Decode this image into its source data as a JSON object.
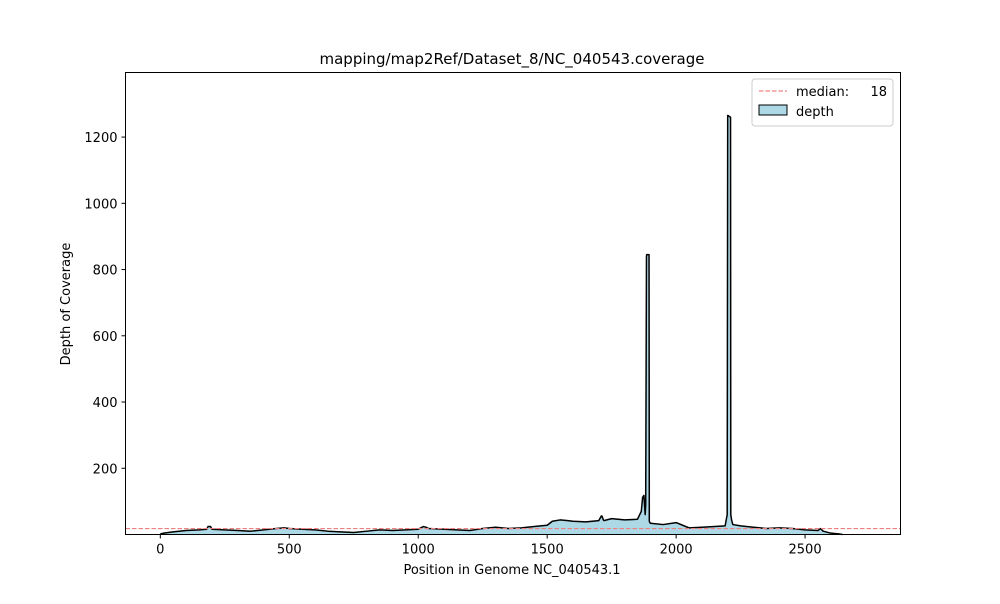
{
  "chart_data": {
    "type": "area",
    "title": "mapping/map2Ref/Dataset_8/NC_040543.coverage",
    "xlabel": "Position in Genome NC_040543.1",
    "ylabel": "Depth of Coverage",
    "xlim": [
      -135,
      2870
    ],
    "ylim": [
      0,
      1395
    ],
    "xticks": [
      0,
      500,
      1000,
      1500,
      2000,
      2500
    ],
    "yticks": [
      200,
      400,
      600,
      800,
      1000,
      1200
    ],
    "grid": false,
    "legend_position": "top-right",
    "median": {
      "label": "median:",
      "value": "18",
      "y": 18,
      "color": "#f08080"
    },
    "series": [
      {
        "name": "depth",
        "fill_color": "#add8e6",
        "edge_color": "#000000",
        "x": [
          0,
          20,
          50,
          100,
          150,
          180,
          185,
          195,
          200,
          250,
          300,
          350,
          400,
          450,
          480,
          500,
          550,
          600,
          650,
          700,
          750,
          800,
          850,
          900,
          950,
          1000,
          1020,
          1030,
          1040,
          1100,
          1150,
          1200,
          1250,
          1300,
          1350,
          1400,
          1450,
          1500,
          1520,
          1550,
          1580,
          1600,
          1650,
          1700,
          1710,
          1712,
          1718,
          1720,
          1750,
          1800,
          1850,
          1865,
          1870,
          1875,
          1880,
          1882,
          1885,
          1886,
          1895,
          1896,
          1900,
          1950,
          2000,
          2050,
          2100,
          2150,
          2190,
          2198,
          2200,
          2201,
          2211,
          2212,
          2215,
          2220,
          2250,
          2300,
          2350,
          2400,
          2450,
          2500,
          2550,
          2560,
          2570,
          2600,
          2630,
          2645
        ],
        "y": [
          2,
          5,
          8,
          12,
          14,
          16,
          24,
          24,
          16,
          14,
          12,
          10,
          14,
          18,
          20,
          18,
          16,
          14,
          10,
          8,
          6,
          10,
          14,
          12,
          14,
          16,
          24,
          22,
          18,
          16,
          14,
          12,
          18,
          22,
          18,
          20,
          24,
          28,
          40,
          44,
          42,
          40,
          38,
          42,
          56,
          56,
          44,
          42,
          48,
          44,
          46,
          70,
          112,
          118,
          60,
          90,
          840,
          845,
          845,
          40,
          34,
          30,
          36,
          20,
          22,
          24,
          26,
          60,
          1265,
          1265,
          1260,
          60,
          44,
          30,
          26,
          22,
          18,
          20,
          18,
          14,
          12,
          18,
          10,
          4,
          2,
          0
        ]
      }
    ]
  }
}
